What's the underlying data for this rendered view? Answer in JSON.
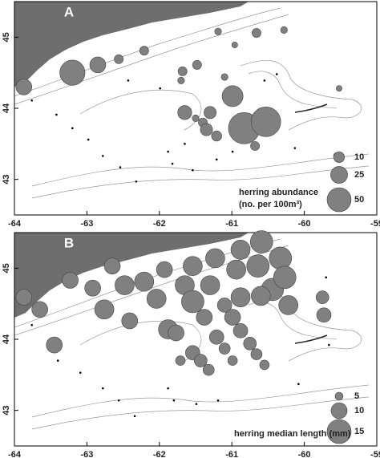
{
  "chart_data": [
    {
      "type": "bubble",
      "title": "A",
      "x": [
        -63.87,
        -63.2,
        -62.85,
        -62.56,
        -62.21,
        -61.68,
        -61.48,
        -61.19,
        -60.96,
        -60.66,
        -60.28,
        -60.99,
        -61.1,
        -61.3,
        -61.4,
        -61.5,
        -61.65,
        -61.21,
        -61.35,
        -60.83,
        -60.53,
        -60.68,
        -59.55,
        -59.52,
        -61.7,
        -63.76,
        -63.42,
        -63.2,
        -62.98,
        -62.78,
        -62.54,
        -62.32,
        -61.88,
        -61.82,
        -61.54,
        -61.65,
        -61.21,
        -60.99,
        -60.13,
        -60.55,
        -60.38,
        -62.43,
        -61.99
      ],
      "y": [
        44.3,
        44.5,
        44.61,
        44.69,
        44.81,
        44.52,
        44.61,
        45.08,
        44.89,
        45.06,
        45.1,
        44.17,
        44.44,
        43.94,
        43.8,
        43.86,
        43.94,
        43.61,
        43.7,
        43.72,
        43.81,
        43.47,
        43.33,
        44.28,
        44.39,
        44.11,
        43.91,
        43.72,
        43.56,
        43.33,
        43.17,
        42.97,
        43.39,
        43.22,
        43.13,
        43.5,
        43.28,
        43.39,
        43.44,
        44.39,
        44.48,
        44.39,
        44.28
      ],
      "sizes": [
        22,
        55,
        22,
        7,
        7,
        7,
        7,
        4,
        3,
        7,
        4,
        38,
        4,
        13,
        7,
        4,
        17,
        9,
        13,
        85,
        76,
        7,
        4,
        3,
        4,
        0,
        0,
        0,
        0,
        0,
        0,
        0,
        0,
        0,
        0,
        0,
        0,
        0,
        0,
        0,
        0,
        0,
        0
      ],
      "xlim": [
        -64,
        -59
      ],
      "xticks": [
        -64,
        -63,
        -62,
        -61,
        -60,
        -59
      ],
      "ylim": [
        42.5,
        45.5
      ],
      "yticks": [
        43,
        44,
        45
      ],
      "color": "#808080",
      "size_legend": [
        10,
        25,
        50
      ],
      "legend_title": [
        "herring abundance",
        "(no. per 100m³)"
      ]
    },
    {
      "type": "bubble",
      "title": "B",
      "x": [
        -63.87,
        -63.65,
        -63.45,
        -63.23,
        -62.92,
        -62.76,
        -62.65,
        -62.48,
        -62.41,
        -62.21,
        -62.04,
        -61.88,
        -61.93,
        -61.65,
        -61.54,
        -61.3,
        -61.23,
        -60.94,
        -60.88,
        -60.59,
        -60.64,
        -60.33,
        -61.54,
        -61.38,
        -61.77,
        -61.54,
        -61.43,
        -61.32,
        -61.1,
        -60.99,
        -60.88,
        -60.75,
        -60.66,
        -60.55,
        -60.44,
        -60.27,
        -60.6,
        -60.22,
        -59.75,
        -59.73,
        -60.88,
        -61.21,
        -61.1,
        -60.99,
        -61.71,
        -63.76,
        -63.4,
        -63.09,
        -62.78,
        -62.56,
        -62.34,
        -61.88,
        -61.8,
        -61.49,
        -61.19,
        -60.08,
        -59.7,
        -59.66
      ],
      "y": [
        44.59,
        44.42,
        43.92,
        44.83,
        44.72,
        44.42,
        45.03,
        44.76,
        44.26,
        44.81,
        44.57,
        44.14,
        44.98,
        44.76,
        45.03,
        44.76,
        45.14,
        44.98,
        45.26,
        45.37,
        45.03,
        45.14,
        44.53,
        44.31,
        44.09,
        43.81,
        43.7,
        43.57,
        44.48,
        44.31,
        44.12,
        43.94,
        43.79,
        43.64,
        44.7,
        44.87,
        44.61,
        44.48,
        44.59,
        44.34,
        44.59,
        44.03,
        43.87,
        43.7,
        43.7,
        44.2,
        43.7,
        43.53,
        43.31,
        43.14,
        42.92,
        43.31,
        43.14,
        43.09,
        43.14,
        43.37,
        44.87,
        43.92
      ],
      "sizes": [
        10,
        10,
        10,
        10,
        10,
        12,
        10,
        12,
        10,
        12,
        12,
        12,
        10,
        12,
        12,
        12,
        12,
        12,
        12,
        14,
        14,
        14,
        14,
        10,
        10,
        9,
        8,
        7,
        9,
        10,
        9,
        8,
        7,
        6,
        14,
        14,
        12,
        12,
        8,
        9,
        12,
        9,
        7,
        6,
        6,
        0,
        0,
        0,
        0,
        0,
        0,
        0,
        0,
        0,
        0,
        0,
        0,
        0
      ],
      "xlim": [
        -64,
        -59
      ],
      "xticks": [
        -64,
        -63,
        -62,
        -61,
        -60,
        -59
      ],
      "ylim": [
        42.5,
        45.5
      ],
      "yticks": [
        43,
        44,
        45
      ],
      "color": "#808080",
      "size_legend": [
        5,
        10,
        15
      ],
      "legend_title": [
        "herring median length (mm)"
      ]
    }
  ]
}
